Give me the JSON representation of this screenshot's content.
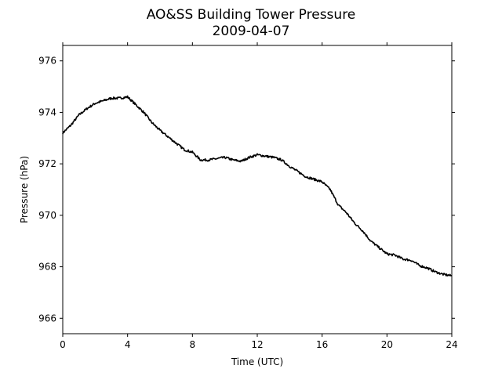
{
  "chart_data": {
    "type": "line",
    "title": "AO&SS Building Tower Pressure",
    "subtitle": "2009-04-07",
    "xlabel": "Time (UTC)",
    "ylabel": "Pressure (hPa)",
    "xlim": [
      0,
      24
    ],
    "ylim": [
      965.4,
      976.6
    ],
    "x_ticks": [
      0,
      4,
      8,
      12,
      16,
      20,
      24
    ],
    "y_ticks": [
      966,
      968,
      970,
      972,
      974,
      976
    ],
    "grid": false,
    "legend": "none",
    "line_color": "#000000",
    "series": [
      {
        "x": [
          0,
          0.5,
          1,
          1.5,
          2,
          2.5,
          3,
          3.5,
          4,
          4.5,
          5,
          5.5,
          6,
          6.5,
          7,
          7.5,
          8,
          8.5,
          9,
          9.5,
          10,
          10.5,
          11,
          11.5,
          12,
          12.5,
          13,
          13.5,
          14,
          14.5,
          15,
          15.5,
          16,
          16.5,
          17,
          17.5,
          18,
          18.5,
          19,
          19.5,
          20,
          20.5,
          21,
          21.5,
          22,
          22.5,
          23,
          23.5,
          24
        ],
        "values": [
          973.2,
          973.5,
          973.9,
          974.15,
          974.35,
          974.45,
          974.55,
          974.55,
          974.6,
          974.3,
          974.0,
          973.6,
          973.3,
          973.05,
          972.8,
          972.55,
          972.45,
          972.15,
          972.15,
          972.2,
          972.25,
          972.15,
          972.1,
          972.25,
          972.35,
          972.3,
          972.25,
          972.15,
          971.9,
          971.7,
          971.5,
          971.4,
          971.3,
          971.0,
          970.4,
          970.1,
          969.7,
          969.4,
          969.0,
          968.75,
          968.5,
          968.45,
          968.3,
          968.25,
          968.05,
          967.95,
          967.8,
          967.7,
          967.65
        ]
      }
    ]
  }
}
